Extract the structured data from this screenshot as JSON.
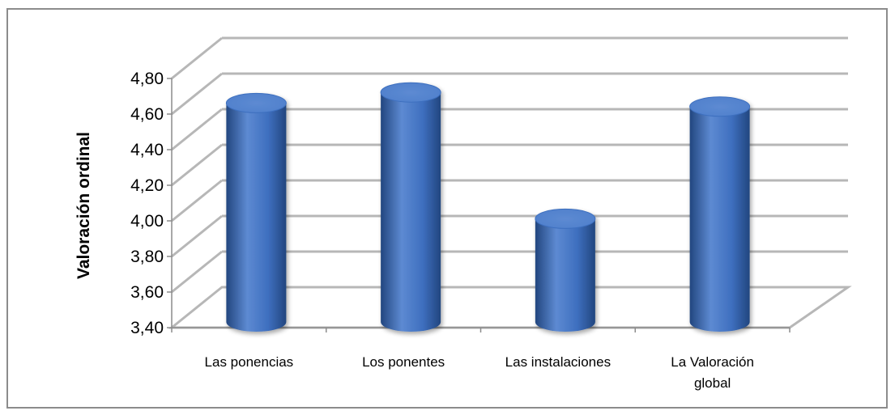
{
  "chart_data": {
    "type": "bar",
    "style": "3d-cylinder",
    "categories": [
      "Las ponencias",
      "Los ponentes",
      "Las instalaciones",
      "La Valoración global"
    ],
    "category_label_lines": [
      [
        "Las ponencias"
      ],
      [
        "Los ponentes"
      ],
      [
        "Las instalaciones"
      ],
      [
        "La Valoración",
        "global"
      ]
    ],
    "values": [
      4.63,
      4.69,
      3.98,
      4.61
    ],
    "title": "",
    "xlabel": "",
    "ylabel": "Valoración ordinal",
    "ylim": [
      3.4,
      4.8
    ],
    "yticks": [
      3.4,
      3.6,
      3.8,
      4.0,
      4.2,
      4.4,
      4.6,
      4.8
    ],
    "ytick_labels": [
      "3,40",
      "3,60",
      "3,80",
      "4,00",
      "4,20",
      "4,40",
      "4,60",
      "4,80"
    ],
    "grid": true,
    "legend": "none",
    "colors": {
      "bar_light": "#5d8ad2",
      "bar_mid": "#3e6fbf",
      "bar_dark": "#22467f",
      "bar_top": "#4f80cc",
      "gridline": "#b7b7b7",
      "axis": "#8c8c8c"
    }
  }
}
